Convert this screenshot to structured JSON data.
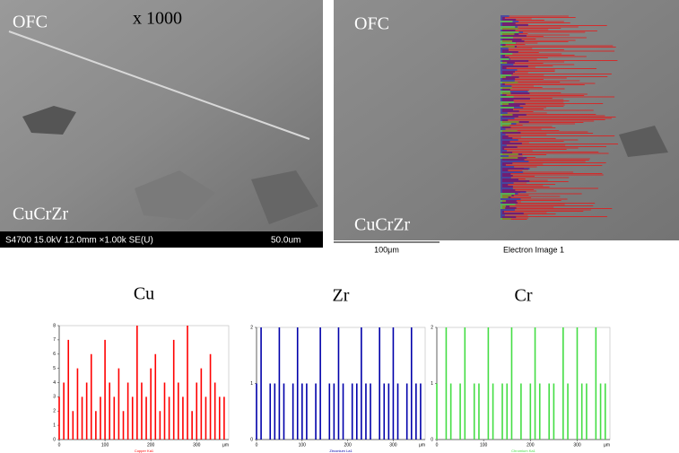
{
  "images": [
    {
      "labels": [
        "OFC",
        "x 1000",
        "CuCrZr"
      ],
      "info": "S4700 15.0kV 12.0mm ×1.00k SE(U)",
      "scale": "50.0um"
    },
    {
      "labels": [
        "OFC",
        "CuCrZr"
      ],
      "scale": "100μm",
      "caption": "Electron Image 1"
    }
  ],
  "chart_data": [
    {
      "type": "bar",
      "title": "Cu",
      "xlabel": "Copper Ka1",
      "x_unit": "μm",
      "color": "#ff0000",
      "x": [
        0,
        10,
        20,
        30,
        40,
        50,
        60,
        70,
        80,
        90,
        100,
        110,
        120,
        130,
        140,
        150,
        160,
        170,
        180,
        190,
        200,
        210,
        220,
        230,
        240,
        250,
        260,
        270,
        280,
        290,
        300,
        310,
        320,
        330,
        340,
        350,
        360
      ],
      "values": [
        3,
        4,
        7,
        2,
        5,
        3,
        4,
        6,
        2,
        3,
        7,
        4,
        3,
        5,
        2,
        4,
        3,
        8,
        4,
        3,
        5,
        6,
        2,
        4,
        3,
        7,
        4,
        3,
        8,
        2,
        4,
        5,
        3,
        6,
        4,
        3,
        3
      ],
      "xlim": [
        0,
        370
      ],
      "xticks": [
        0,
        100,
        200,
        300
      ],
      "ylim": [
        0,
        8
      ],
      "yticks": [
        0,
        1,
        2,
        3,
        4,
        5,
        6,
        7,
        8
      ]
    },
    {
      "type": "bar",
      "title": "Zr",
      "xlabel": "Zirconium La1",
      "x_unit": "μm",
      "color": "#0000aa",
      "x": [
        0,
        10,
        20,
        30,
        40,
        50,
        60,
        70,
        80,
        90,
        100,
        110,
        120,
        130,
        140,
        150,
        160,
        170,
        180,
        190,
        200,
        210,
        220,
        230,
        240,
        250,
        260,
        270,
        280,
        290,
        300,
        310,
        320,
        330,
        340,
        350,
        360
      ],
      "values": [
        1,
        2,
        0,
        1,
        1,
        2,
        1,
        0,
        1,
        2,
        1,
        1,
        0,
        1,
        2,
        0,
        1,
        1,
        2,
        1,
        0,
        1,
        1,
        2,
        1,
        1,
        0,
        2,
        1,
        1,
        2,
        1,
        0,
        1,
        2,
        1,
        1
      ],
      "xlim": [
        0,
        370
      ],
      "xticks": [
        0,
        100,
        200,
        300
      ],
      "ylim": [
        0,
        2
      ],
      "yticks": [
        0,
        1,
        2
      ]
    },
    {
      "type": "bar",
      "title": "Cr",
      "xlabel": "Chromium Ka1",
      "x_unit": "μm",
      "color": "#44dd44",
      "x": [
        0,
        10,
        20,
        30,
        40,
        50,
        60,
        70,
        80,
        90,
        100,
        110,
        120,
        130,
        140,
        150,
        160,
        170,
        180,
        190,
        200,
        210,
        220,
        230,
        240,
        250,
        260,
        270,
        280,
        290,
        300,
        310,
        320,
        330,
        340,
        350,
        360
      ],
      "values": [
        1,
        0,
        2,
        1,
        0,
        1,
        2,
        0,
        1,
        1,
        0,
        2,
        1,
        0,
        1,
        1,
        2,
        0,
        1,
        0,
        1,
        2,
        1,
        0,
        1,
        1,
        0,
        2,
        1,
        0,
        2,
        1,
        1,
        0,
        2,
        1,
        1
      ],
      "xlim": [
        0,
        370
      ],
      "xticks": [
        0,
        100,
        200,
        300
      ],
      "ylim": [
        0,
        2
      ],
      "yticks": [
        0,
        1,
        2
      ]
    }
  ]
}
